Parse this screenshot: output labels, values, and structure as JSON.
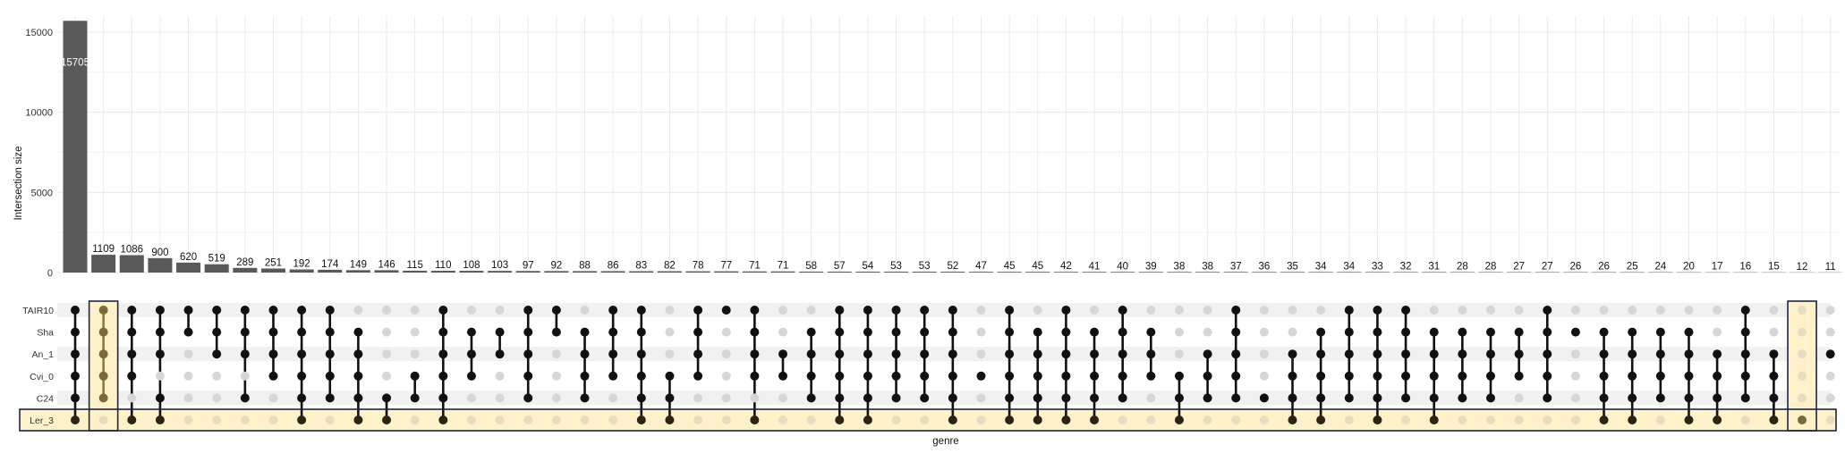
{
  "chart_data": {
    "type": "bar",
    "subtype": "upset",
    "ylabel": "Intersection size",
    "xlabel": "genre",
    "ylim": [
      0,
      16000
    ],
    "yticks": [
      0,
      5000,
      10000,
      15000
    ],
    "grid": true,
    "sets": [
      "TAIR10",
      "Sha",
      "An_1",
      "Cvi_0",
      "C24",
      "Ler_3"
    ],
    "values": [
      15705,
      1109,
      1086,
      900,
      620,
      519,
      289,
      251,
      192,
      174,
      149,
      146,
      115,
      110,
      108,
      103,
      97,
      92,
      88,
      86,
      83,
      82,
      78,
      77,
      71,
      71,
      58,
      57,
      54,
      53,
      53,
      52,
      47,
      45,
      45,
      42,
      41,
      40,
      39,
      38,
      38,
      37,
      36,
      35,
      34,
      34,
      33,
      32,
      31,
      28,
      28,
      27,
      27,
      26,
      26,
      25,
      24,
      20,
      17,
      16,
      15,
      12,
      11
    ],
    "memberships": [
      [
        0,
        1,
        2,
        3,
        4,
        5
      ],
      [
        0,
        1,
        2,
        3,
        4
      ],
      [
        0,
        1,
        2,
        3,
        5
      ],
      [
        0,
        1,
        2,
        4,
        5
      ],
      [
        0,
        1
      ],
      [
        0,
        1,
        2
      ],
      [
        0,
        1,
        2,
        4
      ],
      [
        0,
        1,
        2,
        3
      ],
      [
        0,
        1,
        2,
        3,
        4,
        5
      ],
      [
        0,
        1,
        2,
        3,
        4
      ],
      [
        1,
        2,
        3,
        4,
        5
      ],
      [
        4,
        5
      ],
      [
        3,
        4
      ],
      [
        0,
        1,
        2,
        3,
        4,
        5
      ],
      [
        1,
        2,
        3
      ],
      [
        1,
        2
      ],
      [
        0,
        1,
        2,
        3,
        4
      ],
      [
        0,
        1
      ],
      [
        1,
        2,
        3,
        4
      ],
      [
        0,
        1,
        2,
        3
      ],
      [
        0,
        1,
        2,
        3,
        4,
        5
      ],
      [
        3,
        4,
        5
      ],
      [
        0,
        1,
        2,
        3
      ],
      [
        0
      ],
      [
        0,
        1,
        2,
        3,
        5
      ],
      [
        2,
        3
      ],
      [
        1,
        2,
        3,
        4
      ],
      [
        0,
        1,
        2,
        3,
        4,
        5
      ],
      [
        0,
        1,
        2,
        3,
        4,
        5
      ],
      [
        0,
        1,
        2,
        3,
        4
      ],
      [
        0,
        1,
        2,
        3,
        4
      ],
      [
        0,
        1,
        2,
        3,
        4,
        5
      ],
      [
        3
      ],
      [
        0,
        1,
        2,
        3,
        4,
        5
      ],
      [
        1,
        2,
        3,
        4,
        5
      ],
      [
        0,
        1,
        2,
        3,
        4,
        5
      ],
      [
        1,
        2,
        3,
        4,
        5
      ],
      [
        0,
        1,
        2,
        3,
        4
      ],
      [
        1,
        2,
        3
      ],
      [
        3,
        4,
        5
      ],
      [
        2,
        3,
        4
      ],
      [
        0,
        1,
        2,
        3,
        4
      ],
      [
        4
      ],
      [
        2,
        3,
        4,
        5
      ],
      [
        1,
        2,
        3,
        4,
        5
      ],
      [
        0,
        1,
        2,
        3,
        4
      ],
      [
        0,
        1,
        2,
        3,
        4,
        5
      ],
      [
        0,
        1,
        2,
        3,
        4
      ],
      [
        1,
        2,
        3,
        4,
        5
      ],
      [
        1,
        2,
        3,
        4
      ],
      [
        1,
        2,
        3,
        4
      ],
      [
        1,
        2,
        3
      ],
      [
        0,
        1,
        2,
        3,
        4
      ],
      [
        1
      ],
      [
        1,
        2,
        3,
        4,
        5
      ],
      [
        1,
        2,
        3,
        4,
        5
      ],
      [
        1,
        2,
        3,
        4
      ],
      [
        1,
        2,
        3,
        4,
        5
      ],
      [
        2,
        3,
        4,
        5
      ],
      [
        0,
        1,
        2,
        3,
        4
      ],
      [
        2,
        3,
        4,
        5
      ],
      [
        5
      ],
      [
        2
      ]
    ],
    "highlight_columns": [
      1,
      61
    ],
    "highlight_set": "Ler_3",
    "colors": {
      "bar": "#595959",
      "dot_active": "#111111",
      "dot_inactive": "#d6d6d6",
      "highlight_fill": "#fff1c9",
      "highlight_border": "#1a2540",
      "stripe": "#f1f1f1",
      "grid": "#eaeaea"
    }
  }
}
